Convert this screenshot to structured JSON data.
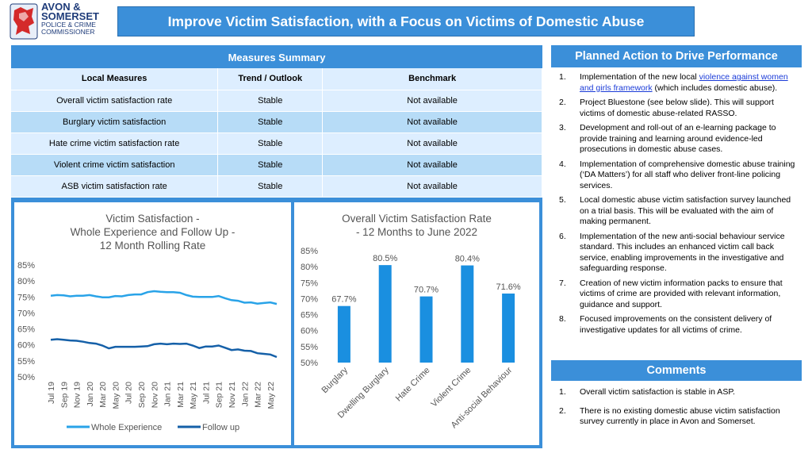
{
  "logo": {
    "line1": "AVON &",
    "line2": "SOMERSET",
    "line3": "POLICE & CRIME",
    "line4": "COMMISSIONER"
  },
  "title": "Improve Victim Satisfaction, with a Focus on Victims of Domestic Abuse",
  "measures": {
    "header": "Measures Summary",
    "columns": [
      "Local Measures",
      "Trend / Outlook",
      "Benchmark"
    ],
    "rows": [
      [
        "Overall victim satisfaction rate",
        "Stable",
        "Not available"
      ],
      [
        "Burglary victim satisfaction",
        "Stable",
        "Not available"
      ],
      [
        "Hate crime victim satisfaction rate",
        "Stable",
        "Not available"
      ],
      [
        "Violent crime victim satisfaction",
        "Stable",
        "Not available"
      ],
      [
        "ASB victim satisfaction rate",
        "Stable",
        "Not available"
      ]
    ]
  },
  "planned": {
    "header": "Planned Action to Drive Performance",
    "item1_pre": "Implementation of the new local ",
    "item1_link": "violence against women and girls framework",
    "item1_post": " (which includes domestic abuse).",
    "items": [
      "Project Bluestone (see below slide). This will support victims of domestic abuse-related RASSO.",
      "Development and roll-out of an e-learning package to provide training and learning around evidence-led prosecutions in domestic abuse cases.",
      "Implementation of comprehensive domestic abuse training (‘DA Matters’) for all staff who deliver front-line policing services.",
      "Local domestic abuse victim satisfaction survey launched on a trial basis. This will be evaluated with the aim of making permanent.",
      "Implementation of the new anti-social behaviour service standard. This includes an enhanced victim call back service, enabling improvements in the investigative and safeguarding response.",
      "Creation of new victim information packs to ensure that victims of crime are provided with relevant information, guidance and support.",
      "Focused improvements on the consistent delivery of investigative updates for all victims of crime."
    ],
    "numbers": [
      "1.",
      "2.",
      "3.",
      "4.",
      "5.",
      "6.",
      "7.",
      "8."
    ]
  },
  "comments": {
    "header": "Comments",
    "items": [
      "Overall victim satisfaction is stable in ASP.",
      "There is no existing domestic abuse victim satisfaction survey currently in place in Avon and Somerset."
    ],
    "numbers": [
      "1.",
      "2."
    ]
  },
  "colors": {
    "accent": "#3b8fd9",
    "whole": "#29a3e8",
    "follow": "#1560a8",
    "bars": "#1a8fe0"
  },
  "chart_data": [
    {
      "type": "line",
      "title_lines": [
        "Victim Satisfaction -",
        "Whole Experience and Follow Up -",
        "12 Month Rolling Rate"
      ],
      "x": [
        "Jul 19",
        "Aug 19",
        "Sep 19",
        "Oct 19",
        "Nov 19",
        "Dec 19",
        "Jan 20",
        "Feb 20",
        "Mar 20",
        "Apr 20",
        "May 20",
        "Jun 20",
        "Jul 20",
        "Aug 20",
        "Sep 20",
        "Oct 20",
        "Nov 20",
        "Dec 20",
        "Jan 21",
        "Feb 21",
        "Mar 21",
        "Apr 21",
        "May 21",
        "Jun 21",
        "Jul 21",
        "Aug 21",
        "Sep 21",
        "Oct 21",
        "Nov 21",
        "Dec 21",
        "Jan 22",
        "Feb 22",
        "Mar 22",
        "Apr 22",
        "May 22",
        "Jun 22"
      ],
      "x_tick_labels": [
        "Jul 19",
        "Sep 19",
        "Nov 19",
        "Jan 20",
        "Mar 20",
        "May 20",
        "Jul 20",
        "Sep 20",
        "Nov 20",
        "Jan 21",
        "Mar 21",
        "May 21",
        "Jul 21",
        "Sep 21",
        "Nov 21",
        "Jan 22",
        "Mar 22",
        "May 22"
      ],
      "series": [
        {
          "name": "Whole Experience",
          "values": [
            75.4,
            75.6,
            75.5,
            75.2,
            75.4,
            75.4,
            75.6,
            75.2,
            74.9,
            74.9,
            75.3,
            75.2,
            75.6,
            75.8,
            75.8,
            76.5,
            76.8,
            76.6,
            76.5,
            76.5,
            76.3,
            75.6,
            75.1,
            75.0,
            75.0,
            75.0,
            75.3,
            74.6,
            74.0,
            73.8,
            73.2,
            73.3,
            72.9,
            73.1,
            73.3,
            72.8
          ]
        },
        {
          "name": "Follow up",
          "values": [
            61.6,
            61.8,
            61.6,
            61.4,
            61.3,
            61.0,
            60.6,
            60.4,
            59.8,
            58.9,
            59.4,
            59.4,
            59.4,
            59.4,
            59.5,
            59.6,
            60.2,
            60.4,
            60.2,
            60.4,
            60.3,
            60.4,
            59.8,
            59.0,
            59.5,
            59.5,
            59.8,
            59.1,
            58.4,
            58.6,
            58.2,
            58.1,
            57.4,
            57.2,
            57.0,
            56.2
          ]
        }
      ],
      "ylim": [
        50,
        85
      ],
      "y_tick_labels": [
        "50%",
        "55%",
        "60%",
        "65%",
        "70%",
        "75%",
        "80%",
        "85%"
      ]
    },
    {
      "type": "bar",
      "title_lines": [
        "Overall Victim Satisfaction Rate",
        "- 12 Months to June 2022"
      ],
      "categories": [
        "Burglary",
        "Dwelling Burglary",
        "Hate Crime",
        "Violent Crime",
        "Anti-social Behaviour"
      ],
      "values": [
        67.7,
        80.5,
        70.7,
        80.4,
        71.6
      ],
      "data_labels": [
        "67.7%",
        "80.5%",
        "70.7%",
        "80.4%",
        "71.6%"
      ],
      "ylim": [
        50,
        85
      ],
      "y_tick_labels": [
        "50%",
        "55%",
        "60%",
        "65%",
        "70%",
        "75%",
        "80%",
        "85%"
      ]
    }
  ]
}
